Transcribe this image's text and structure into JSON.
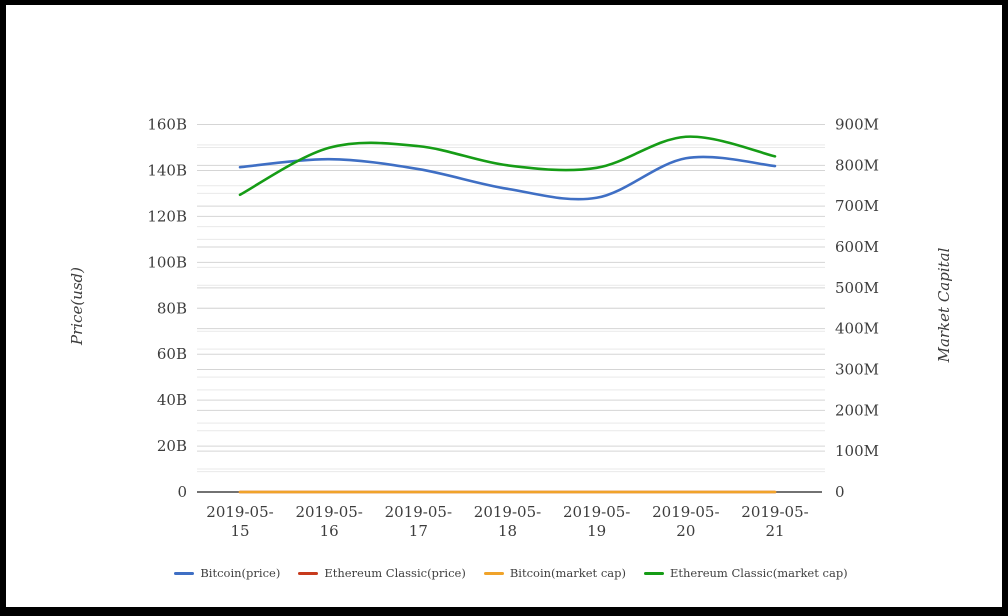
{
  "frame": {
    "background": "#ffffff",
    "border_color": "#000000"
  },
  "chart_data": {
    "type": "line",
    "title": "",
    "x_categories": [
      "2019-05-15",
      "2019-05-16",
      "2019-05-17",
      "2019-05-18",
      "2019-05-19",
      "2019-05-20",
      "2019-05-21"
    ],
    "axes": {
      "left": {
        "label": "Price(usd)",
        "min": 0,
        "max": 160,
        "unit": "B",
        "major_step": 20,
        "minor_step": 10,
        "tick_labels": [
          "0",
          "20B",
          "40B",
          "60B",
          "80B",
          "100B",
          "120B",
          "140B",
          "160B"
        ]
      },
      "right": {
        "label": "Market Capital",
        "min": 0,
        "max": 900,
        "unit": "M",
        "major_step": 100,
        "minor_step": 50,
        "tick_labels": [
          "0",
          "100M",
          "200M",
          "300M",
          "400M",
          "500M",
          "600M",
          "700M",
          "800M",
          "900M"
        ]
      }
    },
    "grid": {
      "on": true,
      "major_color": "#d5d5d5",
      "minor_color": "#e9e9e9",
      "axis_line_color": "#444444"
    },
    "text_color": "#3d3d3d",
    "series": [
      {
        "name": "Bitcoin(price)",
        "color": "#3f6fc4",
        "axis": "left",
        "values": [
          141.4,
          144.9,
          140.6,
          132.0,
          128.1,
          145.3,
          141.9
        ]
      },
      {
        "name": "Ethereum Classic(price)",
        "color": "#c73a1d",
        "axis": "left",
        "values": [
          0,
          0,
          0,
          0,
          0,
          0,
          0
        ]
      },
      {
        "name": "Bitcoin(market cap)",
        "color": "#f0a32a",
        "axis": "right",
        "values": [
          0,
          0,
          0,
          0,
          0,
          0,
          0
        ]
      },
      {
        "name": "Ethereum Classic(market cap)",
        "color": "#169c16",
        "axis": "right",
        "values": [
          728,
          843,
          847,
          800,
          794,
          870,
          822
        ]
      }
    ],
    "legend": {
      "position": "bottom"
    }
  }
}
